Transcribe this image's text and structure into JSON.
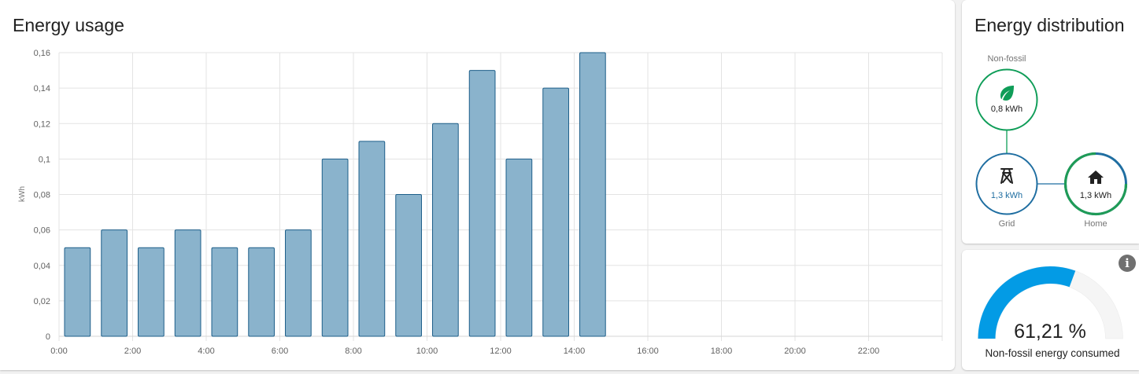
{
  "usage_card": {
    "title": "Energy usage"
  },
  "chart_data": {
    "type": "bar",
    "title": "Energy usage",
    "ylabel": "kWh",
    "xlabel": "",
    "ylim": [
      0,
      0.16
    ],
    "yticks": [
      "0",
      "0,02",
      "0,04",
      "0,06",
      "0,08",
      "0,1",
      "0,12",
      "0,14",
      "0,16"
    ],
    "xticks": [
      "0:00",
      "2:00",
      "4:00",
      "6:00",
      "8:00",
      "10:00",
      "12:00",
      "14:00",
      "16:00",
      "18:00",
      "20:00",
      "22:00"
    ],
    "hours": [
      0,
      1,
      2,
      3,
      4,
      5,
      6,
      7,
      8,
      9,
      10,
      11,
      12,
      13,
      14
    ],
    "values": [
      0.05,
      0.06,
      0.05,
      0.06,
      0.05,
      0.05,
      0.06,
      0.1,
      0.11,
      0.08,
      0.12,
      0.15,
      0.1,
      0.14,
      0.16
    ],
    "grid": true,
    "bar_color": "#8ab3cc",
    "bar_border": "#1e5f8a"
  },
  "distribution_card": {
    "title": "Energy distribution",
    "nonfossil": {
      "label": "Non-fossil",
      "value": "0,8 kWh",
      "icon": "leaf-icon",
      "color": "#0f9d58"
    },
    "grid": {
      "label": "Grid",
      "value": "1,3 kWh",
      "icon": "transmission-tower-icon",
      "color": "#1f6ea1"
    },
    "home": {
      "label": "Home",
      "value": "1,3 kWh",
      "icon": "home-icon",
      "color": "#1f9b57"
    }
  },
  "gauge_card": {
    "value_text": "61,21 %",
    "value": 61.21,
    "label": "Non-fossil energy consumed",
    "info_icon": "info-icon",
    "fill_color": "#039be5",
    "track_color": "#f5f5f5"
  }
}
